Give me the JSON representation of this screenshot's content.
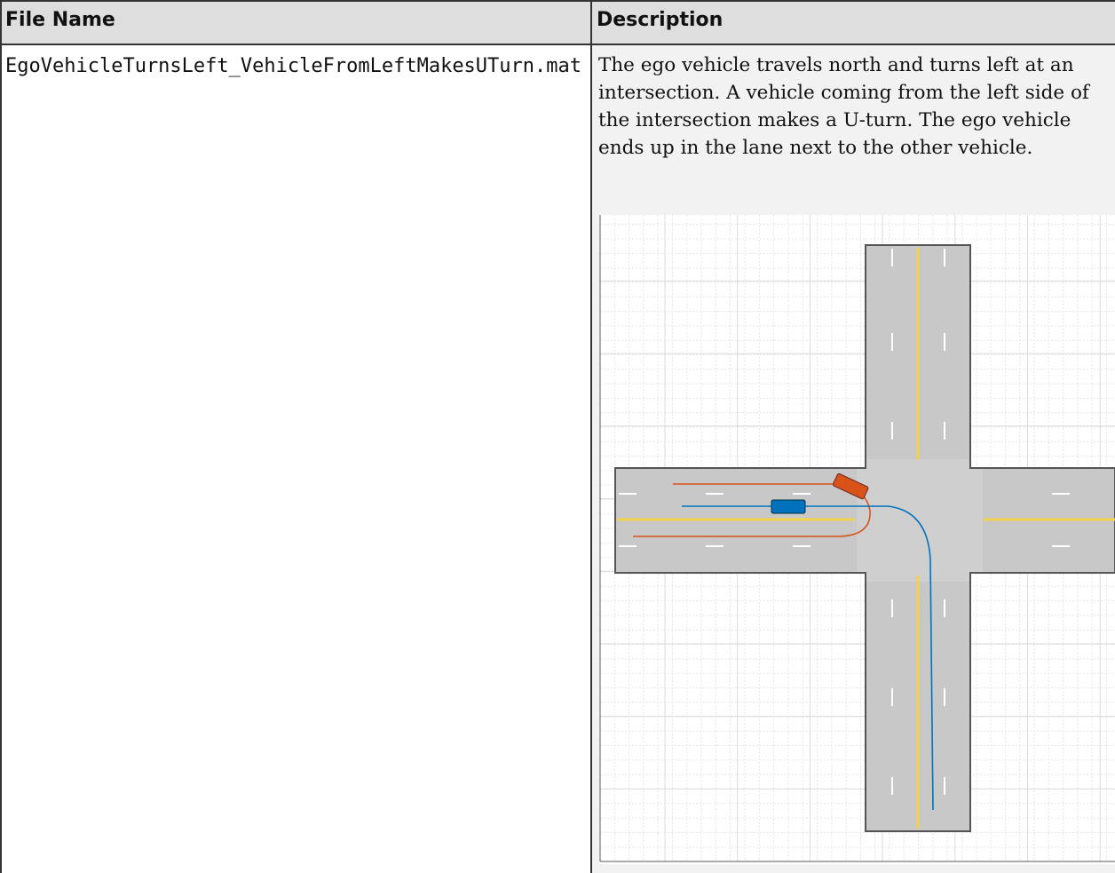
{
  "table": {
    "header": [
      "File Name",
      "Description"
    ],
    "rows": [
      [
        "EgoVehicleTurnsLeft_VehicleFromLeftMakesUTurn.mat",
        "The ego vehicle travels north and turns left at an intersection. A vehicle coming from the left side of the intersection makes a U-turn. The ego vehicle ends up in the lane next to the other vehicle."
      ]
    ]
  }
}
